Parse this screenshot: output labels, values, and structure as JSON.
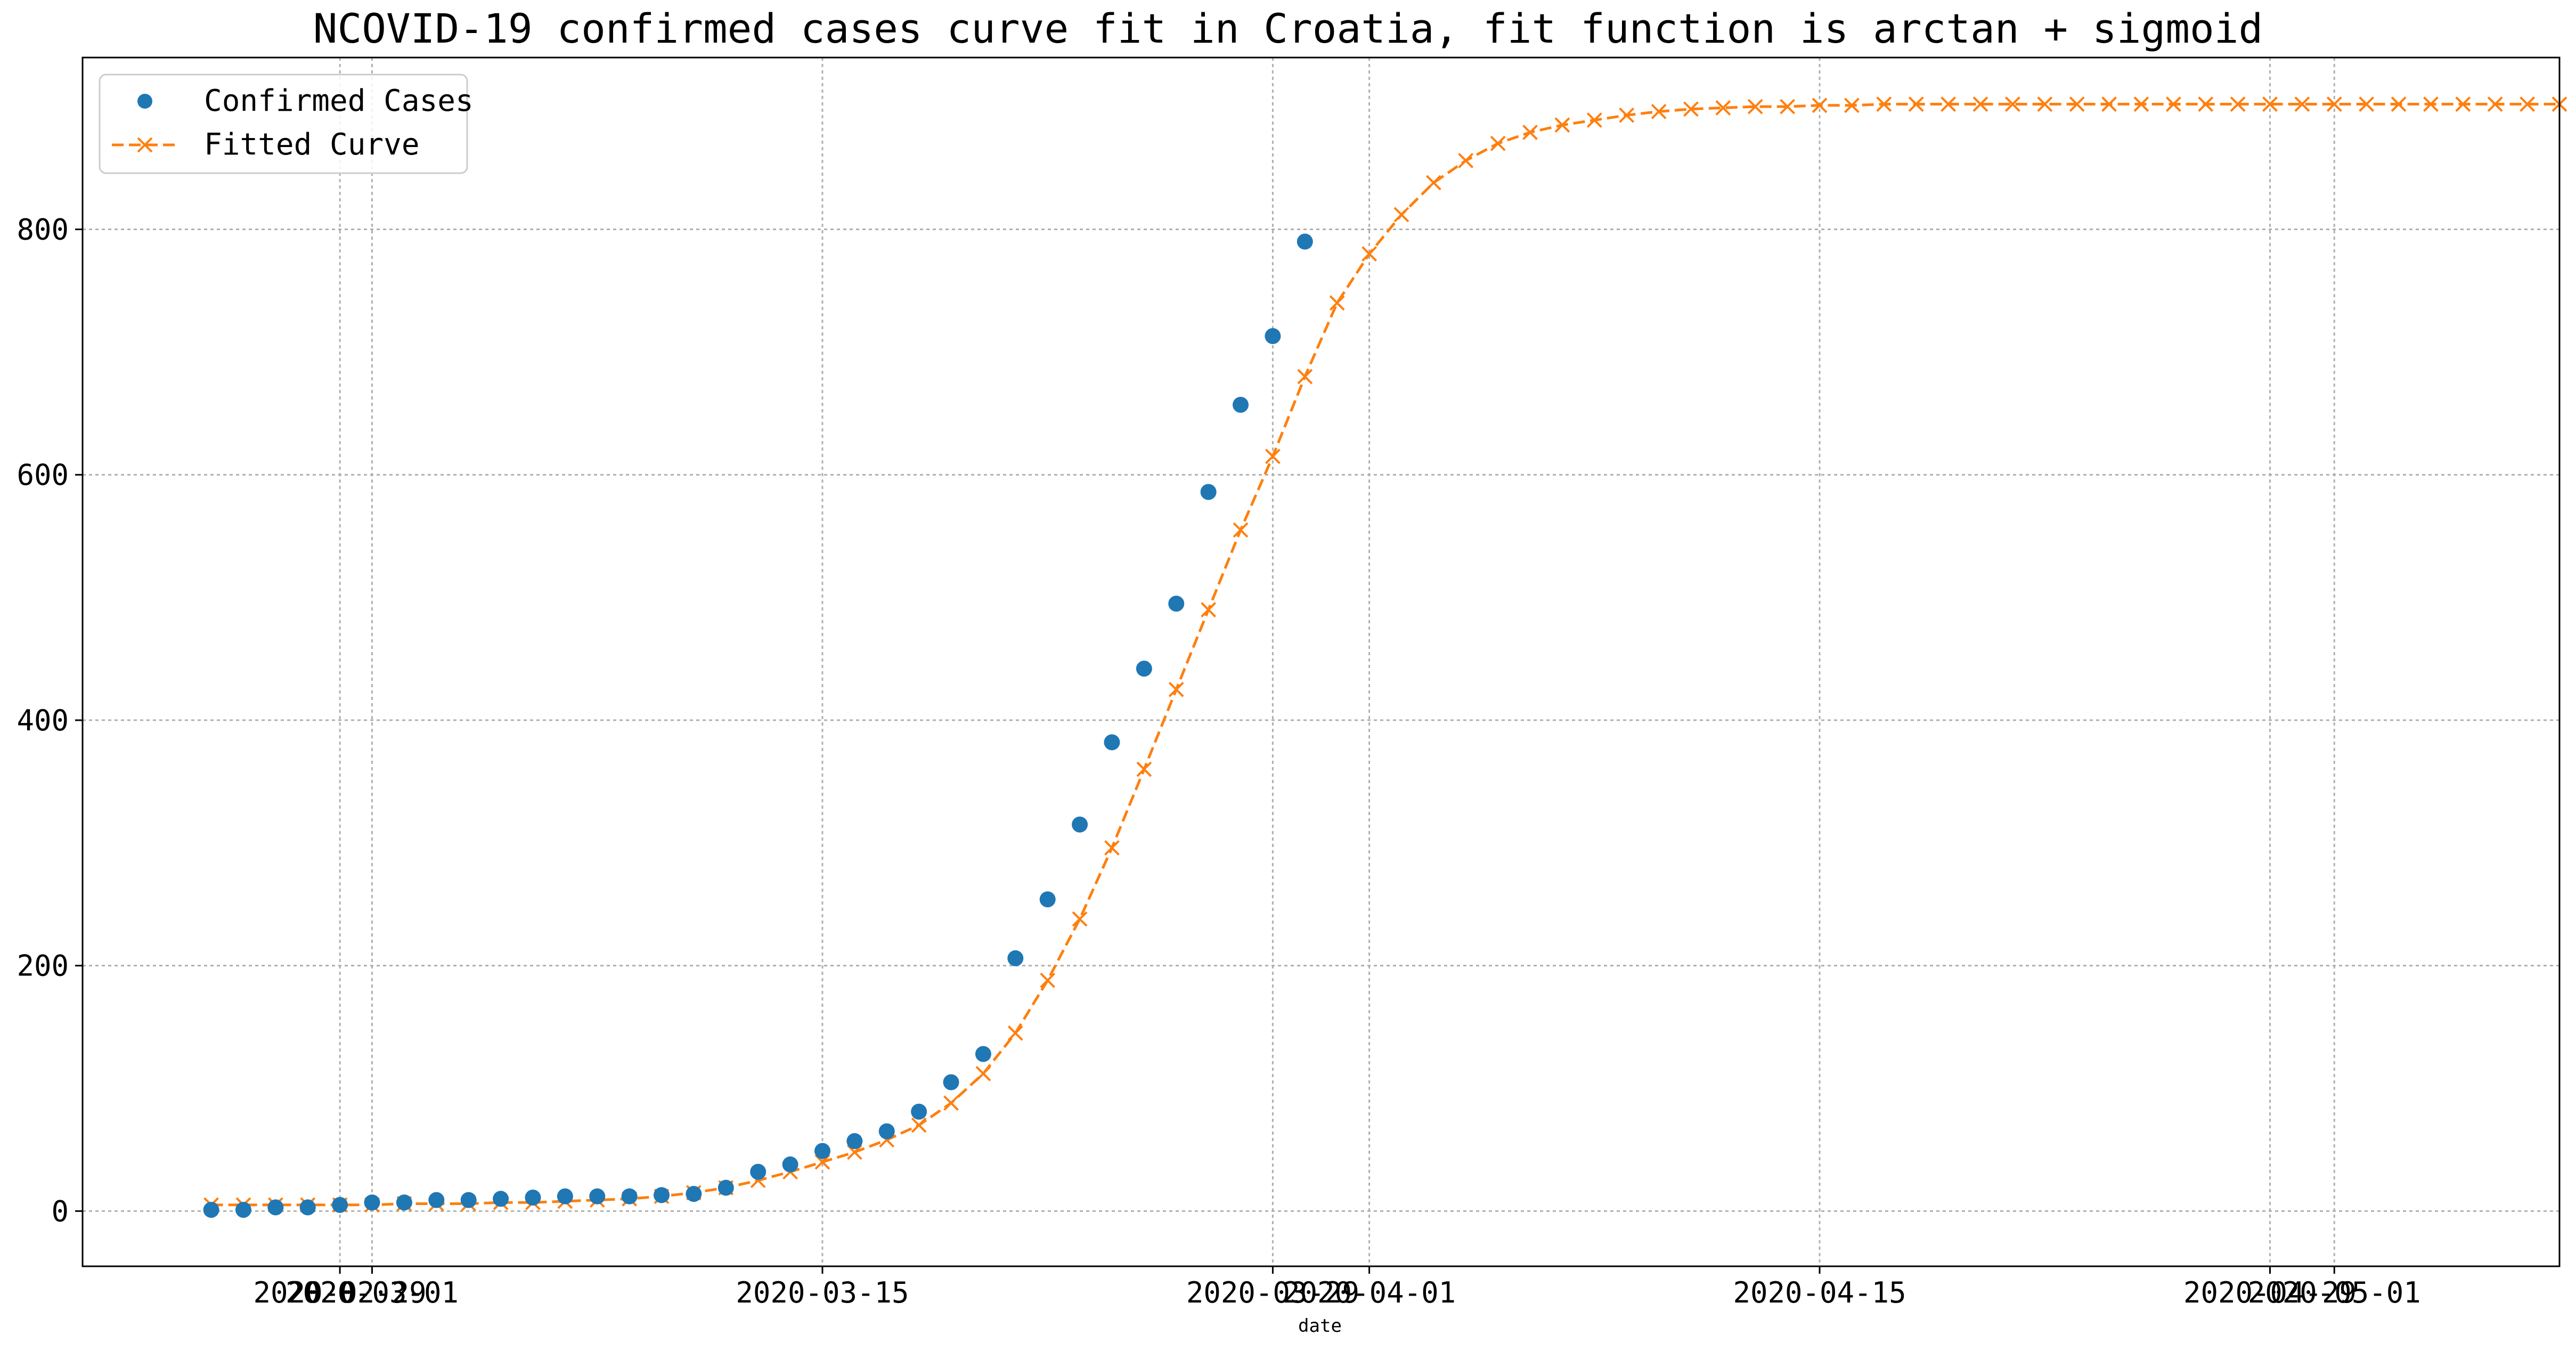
{
  "chart_data": {
    "type": "line",
    "title": "NCOVID-19 confirmed cases curve fit in Croatia, fit function is arctan + sigmoid",
    "xlabel": "date",
    "ylabel": "",
    "ylim": [
      -45,
      940
    ],
    "xlim": [
      "2020-02-21",
      "2020-05-08"
    ],
    "grid": true,
    "legend_position": "upper-left",
    "x_tick_labels": [
      {
        "date": "2020-02-29",
        "label": "2020-02-29"
      },
      {
        "date": "2020-03-01",
        "label": "2020-03-01"
      },
      {
        "date": "2020-03-15",
        "label": "2020-03-15"
      },
      {
        "date": "2020-03-29",
        "label": "2020-03-29"
      },
      {
        "date": "2020-04-01",
        "label": "2020-04-01"
      },
      {
        "date": "2020-04-15",
        "label": "2020-04-15"
      },
      {
        "date": "2020-04-29",
        "label": "2020-04-29"
      },
      {
        "date": "2020-05-01",
        "label": "2020-05-01"
      }
    ],
    "y_ticks": [
      0,
      200,
      400,
      600,
      800
    ],
    "colors": {
      "confirmed": "#1f77b4",
      "fitted": "#ff7f0e"
    },
    "series": [
      {
        "name": "Confirmed Cases",
        "style": "markers",
        "start_date": "2020-02-25",
        "values": [
          1,
          1,
          3,
          3,
          5,
          7,
          7,
          9,
          9,
          10,
          11,
          12,
          12,
          12,
          13,
          14,
          19,
          32,
          38,
          49,
          57,
          65,
          81,
          105,
          128,
          206,
          254,
          315,
          382,
          442,
          495,
          586,
          657,
          713,
          790
        ]
      },
      {
        "name": "Fitted Curve",
        "style": "dashed-line-x-markers",
        "start_date": "2020-02-25",
        "values": [
          5,
          5,
          5,
          5,
          5,
          5,
          6,
          6,
          6,
          7,
          7,
          8,
          9,
          10,
          12,
          15,
          19,
          25,
          32,
          40,
          48,
          58,
          70,
          88,
          112,
          145,
          188,
          238,
          296,
          360,
          425,
          490,
          555,
          615,
          680,
          740,
          780,
          812,
          838,
          856,
          870,
          879,
          885,
          889,
          893,
          896,
          898,
          899,
          900,
          900,
          901,
          901,
          902,
          902,
          902,
          902,
          902,
          902,
          902,
          902,
          902,
          902,
          902,
          902,
          902,
          902,
          902,
          902,
          902,
          902,
          902,
          902,
          902,
          902
        ]
      }
    ]
  }
}
